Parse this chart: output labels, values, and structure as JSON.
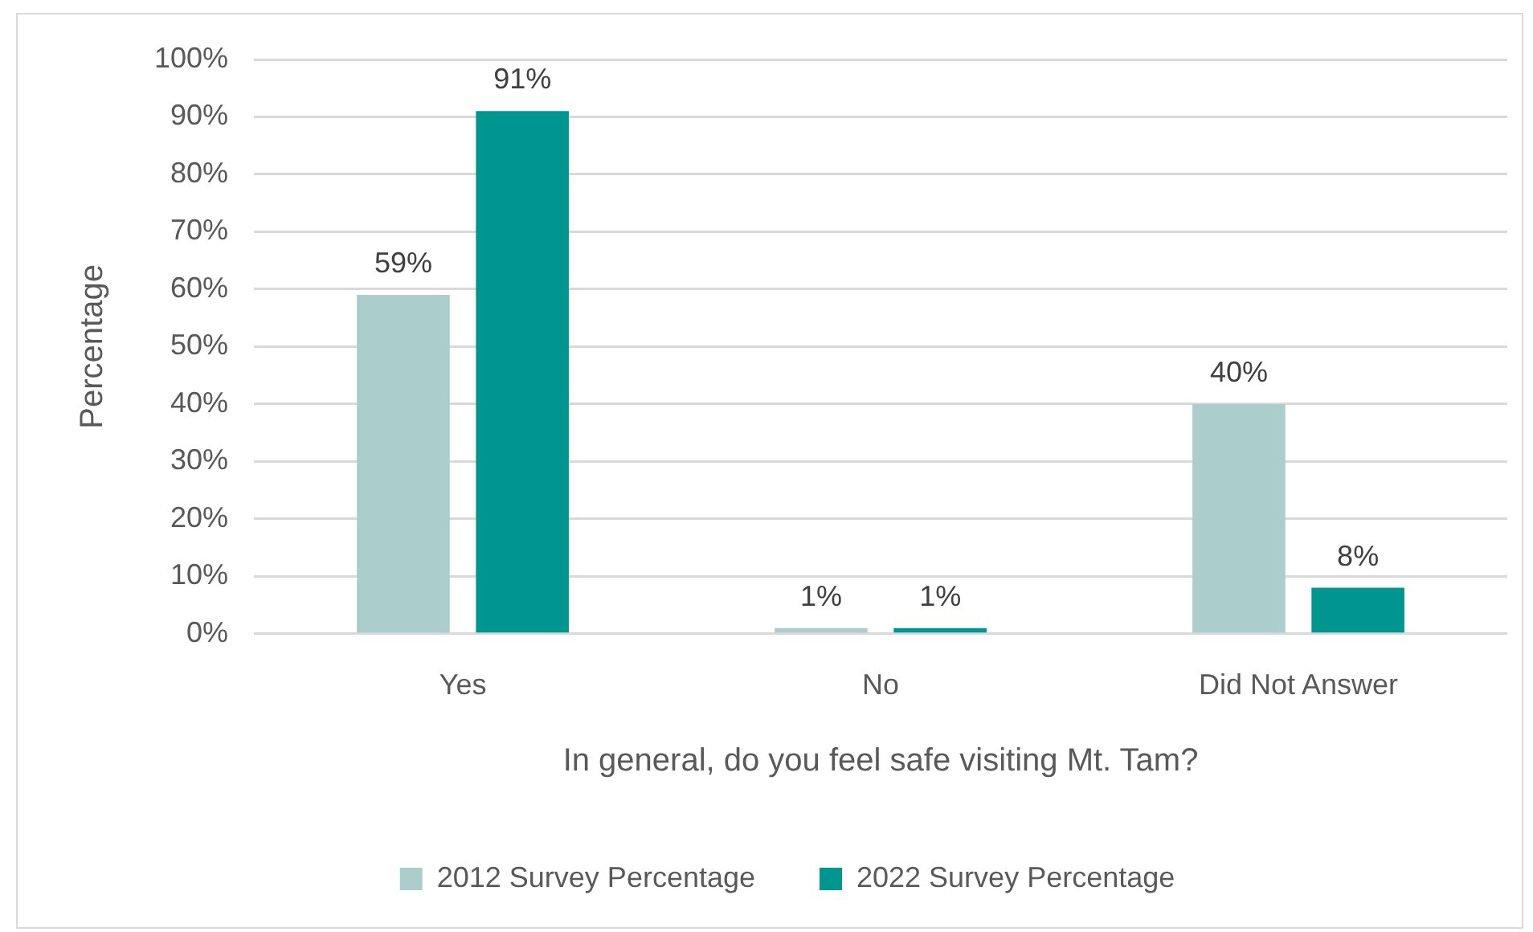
{
  "chart_data": {
    "type": "bar",
    "xlabel": "In general, do you feel safe visiting Mt. Tam?",
    "ylabel": "Percentage",
    "categories": [
      "Yes",
      "No",
      "Did Not Answer"
    ],
    "series": [
      {
        "name": "2012 Survey Percentage",
        "color": "#abcecc",
        "values": [
          59,
          1,
          40
        ],
        "value_labels": [
          "59%",
          "1%",
          "40%"
        ]
      },
      {
        "name": "2022 Survey Percentage",
        "color": "#009690",
        "values": [
          91,
          1,
          8
        ],
        "value_labels": [
          "91%",
          "1%",
          "8%"
        ]
      }
    ],
    "ylim": [
      0,
      100
    ],
    "yticks": [
      {
        "value": 0,
        "label": "0%"
      },
      {
        "value": 10,
        "label": "10%"
      },
      {
        "value": 20,
        "label": "20%"
      },
      {
        "value": 30,
        "label": "30%"
      },
      {
        "value": 40,
        "label": "40%"
      },
      {
        "value": 50,
        "label": "50%"
      },
      {
        "value": 60,
        "label": "60%"
      },
      {
        "value": 70,
        "label": "70%"
      },
      {
        "value": 80,
        "label": "80%"
      },
      {
        "value": 90,
        "label": "90%"
      },
      {
        "value": 100,
        "label": "100%"
      }
    ],
    "grid": "y",
    "legend": "bottom"
  }
}
